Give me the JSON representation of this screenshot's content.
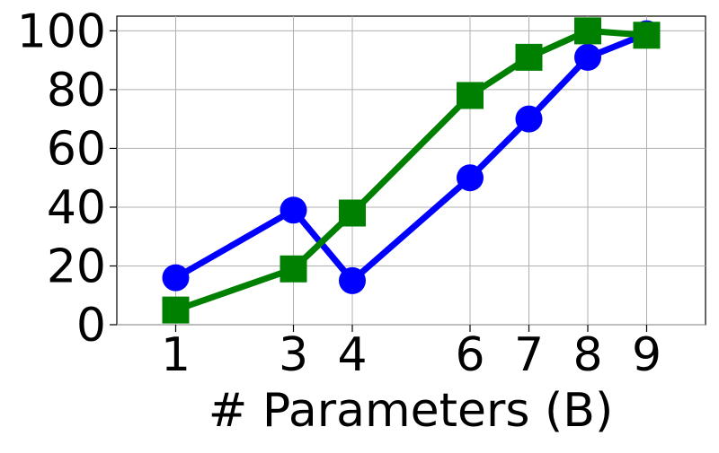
{
  "chart_data": {
    "type": "line",
    "title": "",
    "xlabel": "# Parameters (B)",
    "ylabel": "",
    "x": [
      1,
      3,
      4,
      6,
      7,
      8,
      9
    ],
    "x_tick_labels": [
      "1",
      "3",
      "4",
      "6",
      "7",
      "8",
      "9"
    ],
    "y_ticks": [
      0,
      20,
      40,
      60,
      80,
      100
    ],
    "y_tick_labels": [
      "0",
      "20",
      "40",
      "60",
      "80",
      "100"
    ],
    "xlim": [
      0,
      10
    ],
    "ylim": [
      0,
      105
    ],
    "grid": true,
    "legend": "none",
    "series": [
      {
        "values": [
          16,
          39,
          15,
          50,
          70,
          91,
          99
        ],
        "color": "#0000ff",
        "marker": "circle"
      },
      {
        "values": [
          5,
          19,
          38,
          78,
          91,
          100,
          98.5
        ],
        "color": "#008000",
        "marker": "square"
      }
    ]
  }
}
